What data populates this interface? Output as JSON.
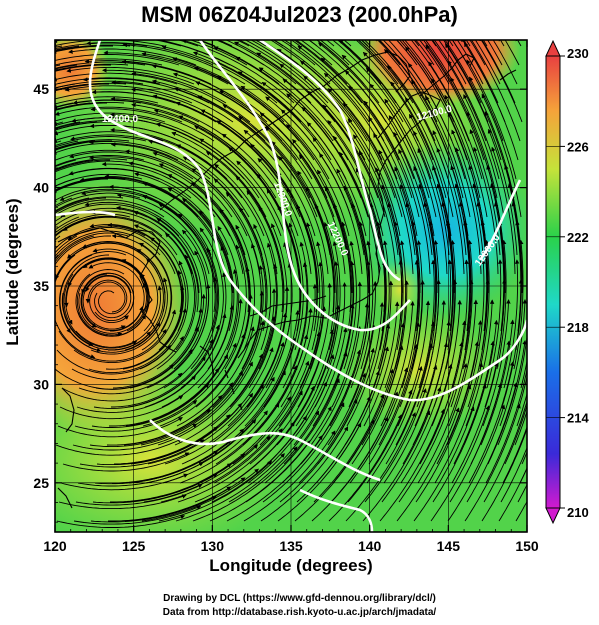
{
  "title": "MSM 06Z04Jul2023 (200.0hPa)",
  "x_axis": {
    "label": "Longitude (degrees)",
    "min": 120,
    "max": 150,
    "ticks": [
      "120",
      "125",
      "130",
      "135",
      "140",
      "145",
      "150"
    ]
  },
  "y_axis": {
    "label": "Latitude  (degrees)",
    "min": 22.5,
    "max": 47.5,
    "ticks": [
      "25",
      "30",
      "35",
      "40",
      "45"
    ]
  },
  "colorbar": {
    "min": 210,
    "max": 230,
    "tick_labels": [
      "230",
      "226",
      "222",
      "218",
      "214",
      "210"
    ]
  },
  "contours": [
    {
      "label": "12400.0"
    },
    {
      "label": "12300.0"
    },
    {
      "label": "12200.0"
    },
    {
      "label": "12100.0"
    },
    {
      "label": "12000.0"
    }
  ],
  "colors": {
    "hot": "#e8413a",
    "warm": "#f5a23a",
    "mid": "#b8e23a",
    "green": "#28c94e",
    "cool": "#1fd8c8",
    "contour": "#ffffff",
    "coast": "#000000"
  },
  "credits": {
    "line1": "Drawing by DCL (https://www.gfd-dennou.org/library/dcl/)",
    "line2": "Data from http://database.rish.kyoto-u.ac.jp/arch/jmadata/"
  }
}
